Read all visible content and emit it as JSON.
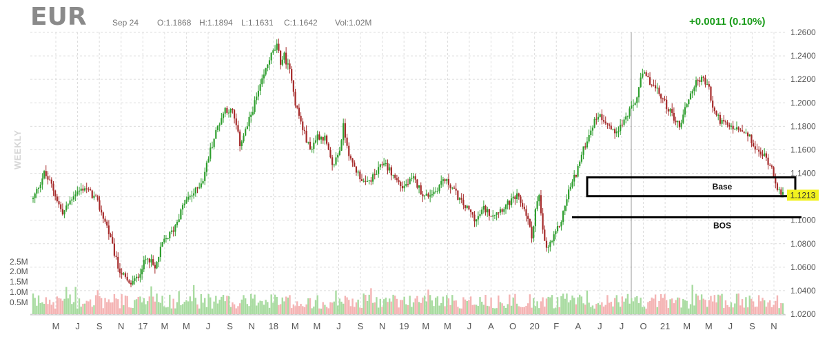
{
  "header": {
    "symbol": "EUR",
    "date": "Sep 24",
    "open": "O:1.1868",
    "high": "H:1.1894",
    "low": "L:1.1631",
    "close": "C:1.1642",
    "volume": "Vol:1.02M",
    "change": "+0.0011 (0.10%)"
  },
  "side_label": "WEEKLY",
  "colors": {
    "up": "#2e9e2e",
    "down": "#a52a2a",
    "vol_up": "#a8dba0",
    "vol_down": "#f4b4b4",
    "highlight": "#f2f21e",
    "change": "#1a9c1a"
  },
  "annotations": {
    "base_label": "Base",
    "bos_label": "BOS"
  },
  "last_price_label": "1.1213",
  "chart_data": {
    "type": "candlestick",
    "interval": "weekly",
    "price_ticks": [
      "1.2600",
      "1.2400",
      "1.2200",
      "1.2000",
      "1.1800",
      "1.1600",
      "1.1400",
      "1.1200",
      "1.1000",
      "1.0800",
      "1.0600",
      "1.0400",
      "1.0200"
    ],
    "volume_ticks": [
      "2.5M",
      "2.0M",
      "1.5M",
      "1.0M",
      "0.5M"
    ],
    "x_labels": [
      "M",
      "J",
      "S",
      "N",
      "17",
      "M",
      "M",
      "J",
      "S",
      "N",
      "18",
      "M",
      "M",
      "J",
      "S",
      "N",
      "19",
      "M",
      "M",
      "J",
      "A",
      "O",
      "20",
      "F",
      "A",
      "J",
      "J",
      "O",
      "21",
      "M",
      "M",
      "J",
      "S",
      "N"
    ],
    "ylim": [
      1.02,
      1.26
    ],
    "volume_max": "2.5M",
    "price_path": [
      [
        0,
        1.118
      ],
      [
        6,
        1.14
      ],
      [
        10,
        1.13
      ],
      [
        16,
        1.105
      ],
      [
        22,
        1.122
      ],
      [
        28,
        1.128
      ],
      [
        34,
        1.118
      ],
      [
        40,
        1.095
      ],
      [
        46,
        1.06
      ],
      [
        52,
        1.045
      ],
      [
        56,
        1.05
      ],
      [
        62,
        1.07
      ],
      [
        66,
        1.058
      ],
      [
        70,
        1.08
      ],
      [
        76,
        1.092
      ],
      [
        82,
        1.115
      ],
      [
        88,
        1.125
      ],
      [
        92,
        1.135
      ],
      [
        96,
        1.16
      ],
      [
        100,
        1.18
      ],
      [
        104,
        1.195
      ],
      [
        108,
        1.192
      ],
      [
        110,
        1.18
      ],
      [
        112,
        1.165
      ],
      [
        116,
        1.18
      ],
      [
        120,
        1.2
      ],
      [
        124,
        1.218
      ],
      [
        128,
        1.238
      ],
      [
        132,
        1.248
      ],
      [
        134,
        1.235
      ],
      [
        136,
        1.24
      ],
      [
        140,
        1.222
      ],
      [
        142,
        1.2
      ],
      [
        146,
        1.178
      ],
      [
        150,
        1.16
      ],
      [
        154,
        1.172
      ],
      [
        158,
        1.17
      ],
      [
        162,
        1.145
      ],
      [
        166,
        1.16
      ],
      [
        168,
        1.18
      ],
      [
        172,
        1.15
      ],
      [
        176,
        1.14
      ],
      [
        180,
        1.13
      ],
      [
        186,
        1.14
      ],
      [
        190,
        1.15
      ],
      [
        194,
        1.14
      ],
      [
        200,
        1.128
      ],
      [
        206,
        1.135
      ],
      [
        212,
        1.12
      ],
      [
        218,
        1.125
      ],
      [
        222,
        1.135
      ],
      [
        226,
        1.13
      ],
      [
        232,
        1.115
      ],
      [
        236,
        1.108
      ],
      [
        240,
        1.1
      ],
      [
        244,
        1.11
      ],
      [
        248,
        1.105
      ],
      [
        254,
        1.11
      ],
      [
        258,
        1.115
      ],
      [
        262,
        1.12
      ],
      [
        266,
        1.11
      ],
      [
        268,
        1.1
      ],
      [
        270,
        1.085
      ],
      [
        272,
        1.11
      ],
      [
        274,
        1.12
      ],
      [
        276,
        1.09
      ],
      [
        278,
        1.075
      ],
      [
        282,
        1.085
      ],
      [
        286,
        1.1
      ],
      [
        290,
        1.125
      ],
      [
        294,
        1.14
      ],
      [
        298,
        1.16
      ],
      [
        302,
        1.178
      ],
      [
        306,
        1.19
      ],
      [
        310,
        1.185
      ],
      [
        314,
        1.175
      ],
      [
        318,
        1.18
      ],
      [
        322,
        1.19
      ],
      [
        326,
        1.2
      ],
      [
        330,
        1.225
      ],
      [
        334,
        1.218
      ],
      [
        338,
        1.21
      ],
      [
        342,
        1.2
      ],
      [
        346,
        1.19
      ],
      [
        350,
        1.18
      ],
      [
        354,
        1.2
      ],
      [
        358,
        1.215
      ],
      [
        362,
        1.222
      ],
      [
        366,
        1.212
      ],
      [
        368,
        1.195
      ],
      [
        372,
        1.185
      ],
      [
        376,
        1.18
      ],
      [
        380,
        1.178
      ],
      [
        384,
        1.175
      ],
      [
        388,
        1.17
      ],
      [
        392,
        1.158
      ],
      [
        396,
        1.155
      ],
      [
        400,
        1.145
      ],
      [
        403,
        1.128
      ],
      [
        405,
        1.121
      ]
    ],
    "base_zone": [
      1.1205,
      1.1365
    ],
    "bos_level": 1.1025
  }
}
